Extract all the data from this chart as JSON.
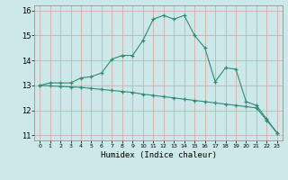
{
  "xlabel": "Humidex (Indice chaleur)",
  "x_values": [
    0,
    1,
    2,
    3,
    4,
    5,
    6,
    7,
    8,
    9,
    10,
    11,
    12,
    13,
    14,
    15,
    16,
    17,
    18,
    19,
    20,
    21,
    22,
    23
  ],
  "line1_y": [
    13.0,
    13.1,
    13.1,
    13.1,
    13.3,
    13.35,
    13.5,
    14.05,
    14.2,
    14.2,
    14.8,
    15.65,
    15.8,
    15.65,
    15.8,
    15.0,
    14.5,
    13.15,
    13.7,
    13.65,
    12.35,
    12.2,
    11.65,
    11.1
  ],
  "line2_y": [
    13.0,
    12.98,
    12.96,
    12.94,
    12.92,
    12.88,
    12.84,
    12.8,
    12.76,
    12.72,
    12.65,
    12.6,
    12.55,
    12.5,
    12.45,
    12.4,
    12.35,
    12.3,
    12.25,
    12.2,
    12.15,
    12.1,
    11.6,
    11.1
  ],
  "line_color": "#2e8b74",
  "bg_color": "#cde8e8",
  "grid_color": "#b8d8d8",
  "ylim_min": 10.8,
  "ylim_max": 16.2,
  "yticks": [
    11,
    12,
    13,
    14,
    15,
    16
  ],
  "marker": "+"
}
